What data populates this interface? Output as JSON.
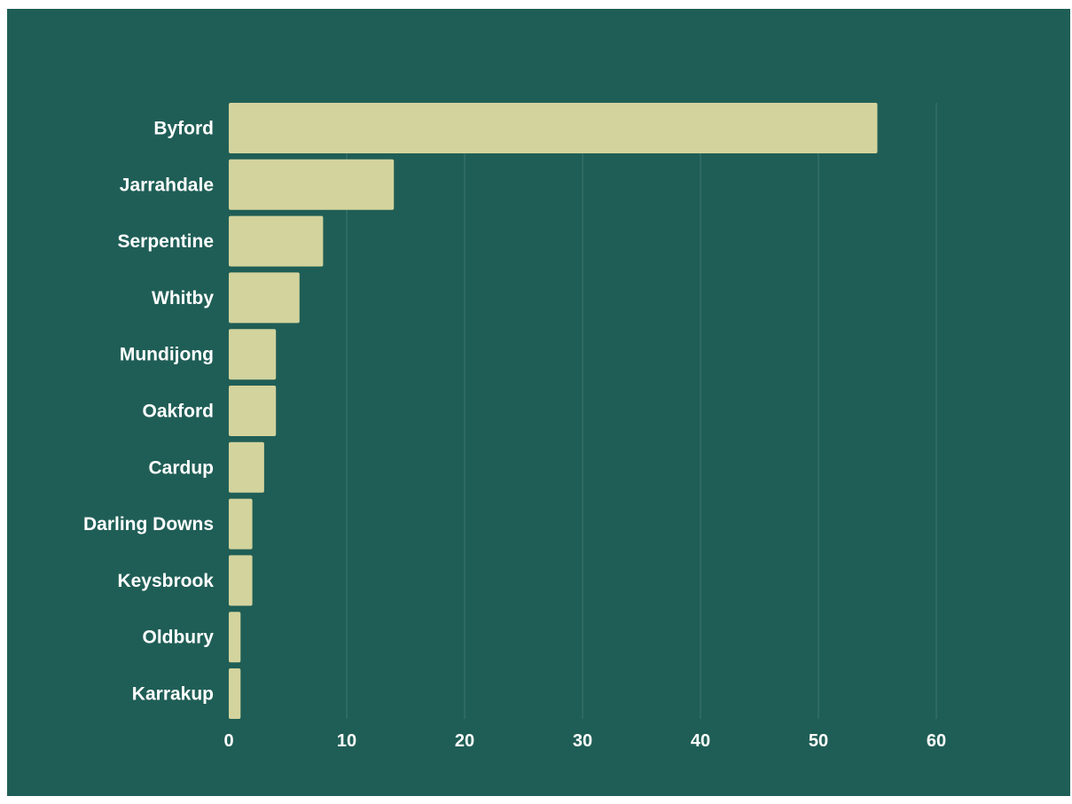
{
  "chart_data": {
    "type": "bar",
    "orientation": "horizontal",
    "categories": [
      "Byford",
      "Jarrahdale",
      "Serpentine",
      "Whitby",
      "Mundijong",
      "Oakford",
      "Cardup",
      "Darling Downs",
      "Keysbrook",
      "Oldbury",
      "Karrakup"
    ],
    "values": [
      55,
      14,
      8,
      6,
      4,
      4,
      3,
      2,
      2,
      1,
      1
    ],
    "xlim": [
      0,
      60
    ],
    "xticks": [
      0,
      10,
      20,
      30,
      40,
      50,
      60
    ],
    "grid": true,
    "title": "",
    "xlabel": "",
    "ylabel": ""
  },
  "colors": {
    "background": "#1f5e56",
    "bar": "#d3d39d",
    "gridline": "#3c776f",
    "text": "#ffffff"
  }
}
